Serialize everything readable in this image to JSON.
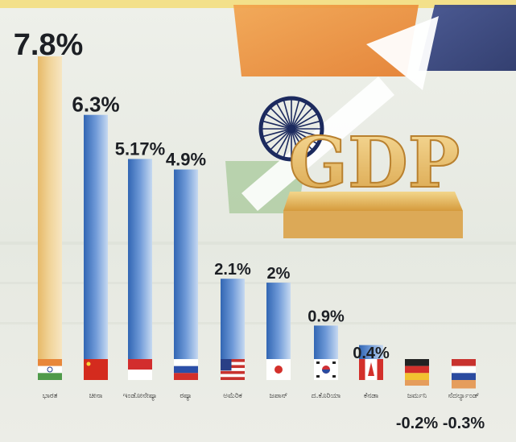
{
  "chart_data": {
    "type": "bar",
    "categories": [
      "ಭಾರತ",
      "ಚೀನಾ",
      "ಇಂಡೋನೇಷ್ಯಾ",
      "ರಷ್ಯಾ",
      "ಅಮೆರಿಕ",
      "ಜಪಾನ್",
      "ದ.ಕೊರಿಯಾ",
      "ಕೆನಡಾ",
      "ಜರ್ಮನಿ",
      "ನೆದರ್ಲ್ಯಾಂಡ್"
    ],
    "values": [
      7.8,
      6.3,
      5.17,
      4.9,
      2.1,
      2.0,
      0.9,
      0.4,
      -0.2,
      -0.3
    ],
    "value_labels": [
      "7.8%",
      "6.3%",
      "5.17%",
      "4.9%",
      "2.1%",
      "2%",
      "0.9%",
      "0.4%",
      "-0.2%",
      "-0.3%"
    ],
    "flags": [
      "india-flag",
      "china-flag",
      "indonesia-flag",
      "russia-flag",
      "usa-flag",
      "japan-flag",
      "south-korea-flag",
      "canada-flag",
      "germany-flag",
      "netherlands-flag"
    ],
    "colors": {
      "highlight_bar": "#e9c77e",
      "bar": "#3f76c4",
      "bar_light": "#c9dcf2"
    },
    "ylim": [
      -0.3,
      7.8
    ]
  },
  "illustration": {
    "headline_art": "GDP",
    "elements": [
      "ashoka-chakra-icon",
      "rising-arrow-icon",
      "gdp-pedestal"
    ]
  }
}
